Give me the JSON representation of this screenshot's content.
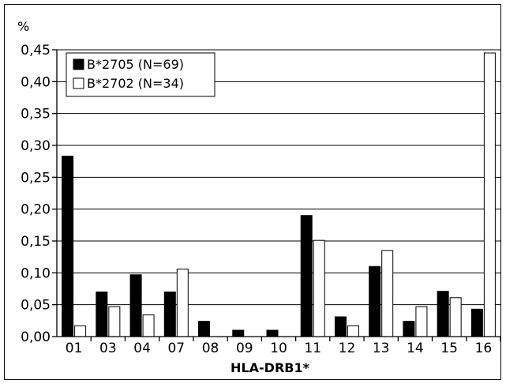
{
  "chart_data": {
    "type": "bar",
    "ylabel": "%",
    "xlabel": "HLA-DRB1*",
    "categories": [
      "01",
      "03",
      "04",
      "07",
      "08",
      "09",
      "10",
      "11",
      "12",
      "13",
      "14",
      "15",
      "16"
    ],
    "ylim": [
      0,
      0.45
    ],
    "yticks": [
      "0,00",
      "0,05",
      "0,10",
      "0,15",
      "0,20",
      "0,25",
      "0,30",
      "0,35",
      "0,40",
      "0,45"
    ],
    "grid": true,
    "legend_position": "top-left",
    "series": [
      {
        "name": "B*2705 (N=69)",
        "color": "#000000",
        "values": [
          0.283,
          0.07,
          0.097,
          0.07,
          0.024,
          0.01,
          0.01,
          0.19,
          0.031,
          0.11,
          0.024,
          0.071,
          0.043
        ]
      },
      {
        "name": "B*2702 (N=34)",
        "color": "#ffffff",
        "values": [
          0.017,
          0.047,
          0.034,
          0.106,
          0,
          0,
          0,
          0.151,
          0.017,
          0.135,
          0.047,
          0.061,
          0.445
        ]
      }
    ]
  }
}
